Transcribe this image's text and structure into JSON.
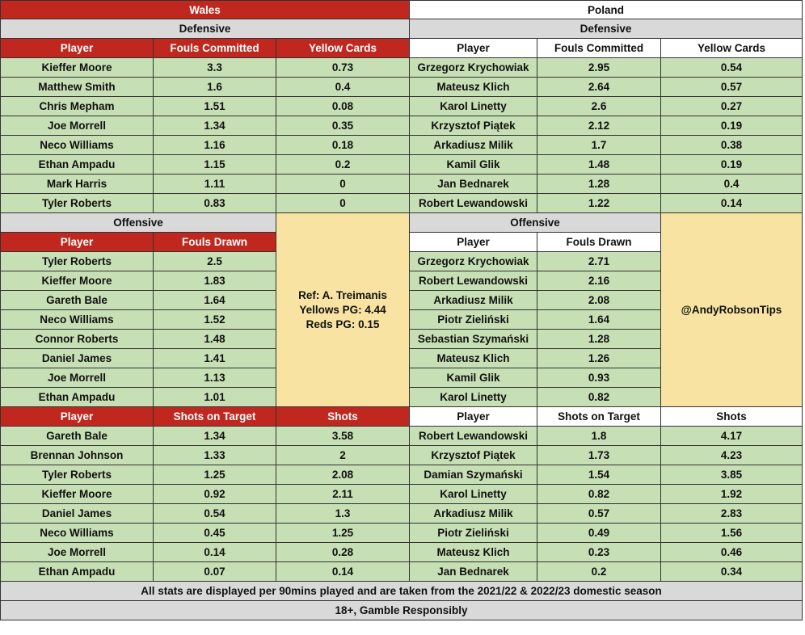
{
  "wales": {
    "team": "Wales",
    "defensive_title": "Defensive",
    "defensive_headers": [
      "Player",
      "Fouls Committed",
      "Yellow Cards"
    ],
    "defensive_rows": [
      [
        "Kieffer Moore",
        "3.3",
        "0.73"
      ],
      [
        "Matthew Smith",
        "1.6",
        "0.4"
      ],
      [
        "Chris Mepham",
        "1.51",
        "0.08"
      ],
      [
        "Joe Morrell",
        "1.34",
        "0.35"
      ],
      [
        "Neco Williams",
        "1.16",
        "0.18"
      ],
      [
        "Ethan Ampadu",
        "1.15",
        "0.2"
      ],
      [
        "Mark Harris",
        "1.11",
        "0"
      ],
      [
        "Tyler Roberts",
        "0.83",
        "0"
      ]
    ],
    "offensive_title": "Offensive",
    "offensive_headers": [
      "Player",
      "Fouls Drawn"
    ],
    "offensive_rows": [
      [
        "Tyler Roberts",
        "2.5"
      ],
      [
        "Kieffer Moore",
        "1.83"
      ],
      [
        "Gareth Bale",
        "1.64"
      ],
      [
        "Neco Williams",
        "1.52"
      ],
      [
        "Connor Roberts",
        "1.48"
      ],
      [
        "Daniel James",
        "1.41"
      ],
      [
        "Joe Morrell",
        "1.13"
      ],
      [
        "Ethan Ampadu",
        "1.01"
      ]
    ],
    "shots_headers": [
      "Player",
      "Shots on Target",
      "Shots"
    ],
    "shots_rows": [
      [
        "Gareth Bale",
        "1.34",
        "3.58"
      ],
      [
        "Brennan Johnson",
        "1.33",
        "2"
      ],
      [
        "Tyler Roberts",
        "1.25",
        "2.08"
      ],
      [
        "Kieffer Moore",
        "0.92",
        "2.11"
      ],
      [
        "Daniel James",
        "0.54",
        "1.3"
      ],
      [
        "Neco Williams",
        "0.45",
        "1.25"
      ],
      [
        "Joe Morrell",
        "0.14",
        "0.28"
      ],
      [
        "Ethan Ampadu",
        "0.07",
        "0.14"
      ]
    ]
  },
  "poland": {
    "team": "Poland",
    "defensive_title": "Defensive",
    "defensive_headers": [
      "Player",
      "Fouls Committed",
      "Yellow Cards"
    ],
    "defensive_rows": [
      [
        "Grzegorz Krychowiak",
        "2.95",
        "0.54"
      ],
      [
        "Mateusz Klich",
        "2.64",
        "0.57"
      ],
      [
        "Karol Linetty",
        "2.6",
        "0.27"
      ],
      [
        "Krzysztof Piątek",
        "2.12",
        "0.19"
      ],
      [
        "Arkadiusz Milik",
        "1.7",
        "0.38"
      ],
      [
        "Kamil Glik",
        "1.48",
        "0.19"
      ],
      [
        "Jan Bednarek",
        "1.28",
        "0.4"
      ],
      [
        "Robert Lewandowski",
        "1.22",
        "0.14"
      ]
    ],
    "offensive_title": "Offensive",
    "offensive_headers": [
      "Player",
      "Fouls Drawn"
    ],
    "offensive_rows": [
      [
        "Grzegorz Krychowiak",
        "2.71"
      ],
      [
        "Robert Lewandowski",
        "2.16"
      ],
      [
        "Arkadiusz Milik",
        "2.08"
      ],
      [
        "Piotr Zieliński",
        "1.64"
      ],
      [
        "Sebastian Szymański",
        "1.28"
      ],
      [
        "Mateusz Klich",
        "1.26"
      ],
      [
        "Kamil Glik",
        "0.93"
      ],
      [
        "Karol Linetty",
        "0.82"
      ]
    ],
    "shots_headers": [
      "Player",
      "Shots on Target",
      "Shots"
    ],
    "shots_rows": [
      [
        "Robert Lewandowski",
        "1.8",
        "4.17"
      ],
      [
        "Krzysztof Piątek",
        "1.73",
        "4.23"
      ],
      [
        "Damian Szymański",
        "1.54",
        "3.85"
      ],
      [
        "Karol Linetty",
        "0.82",
        "1.92"
      ],
      [
        "Arkadiusz Milik",
        "0.57",
        "2.83"
      ],
      [
        "Piotr Zieliński",
        "0.49",
        "1.56"
      ],
      [
        "Mateusz Klich",
        "0.23",
        "0.46"
      ],
      [
        "Jan Bednarek",
        "0.2",
        "0.34"
      ]
    ]
  },
  "referee": {
    "name": "Ref: A. Treimanis",
    "yellows": "Yellows PG: 4.44",
    "reds": "Reds PG: 0.15"
  },
  "handle": "@AndyRobsonTips",
  "footer": {
    "note": "All stats are displayed per 90mins played and are taken from the 2021/22 & 2022/23 domestic season",
    "disclaimer": "18+, Gamble Responsibly"
  },
  "colors": {
    "wales_header": "#c0281f",
    "data_fill": "#c6dfb4",
    "section_fill": "#d9d9d9",
    "note_fill": "#f8e3a2"
  }
}
